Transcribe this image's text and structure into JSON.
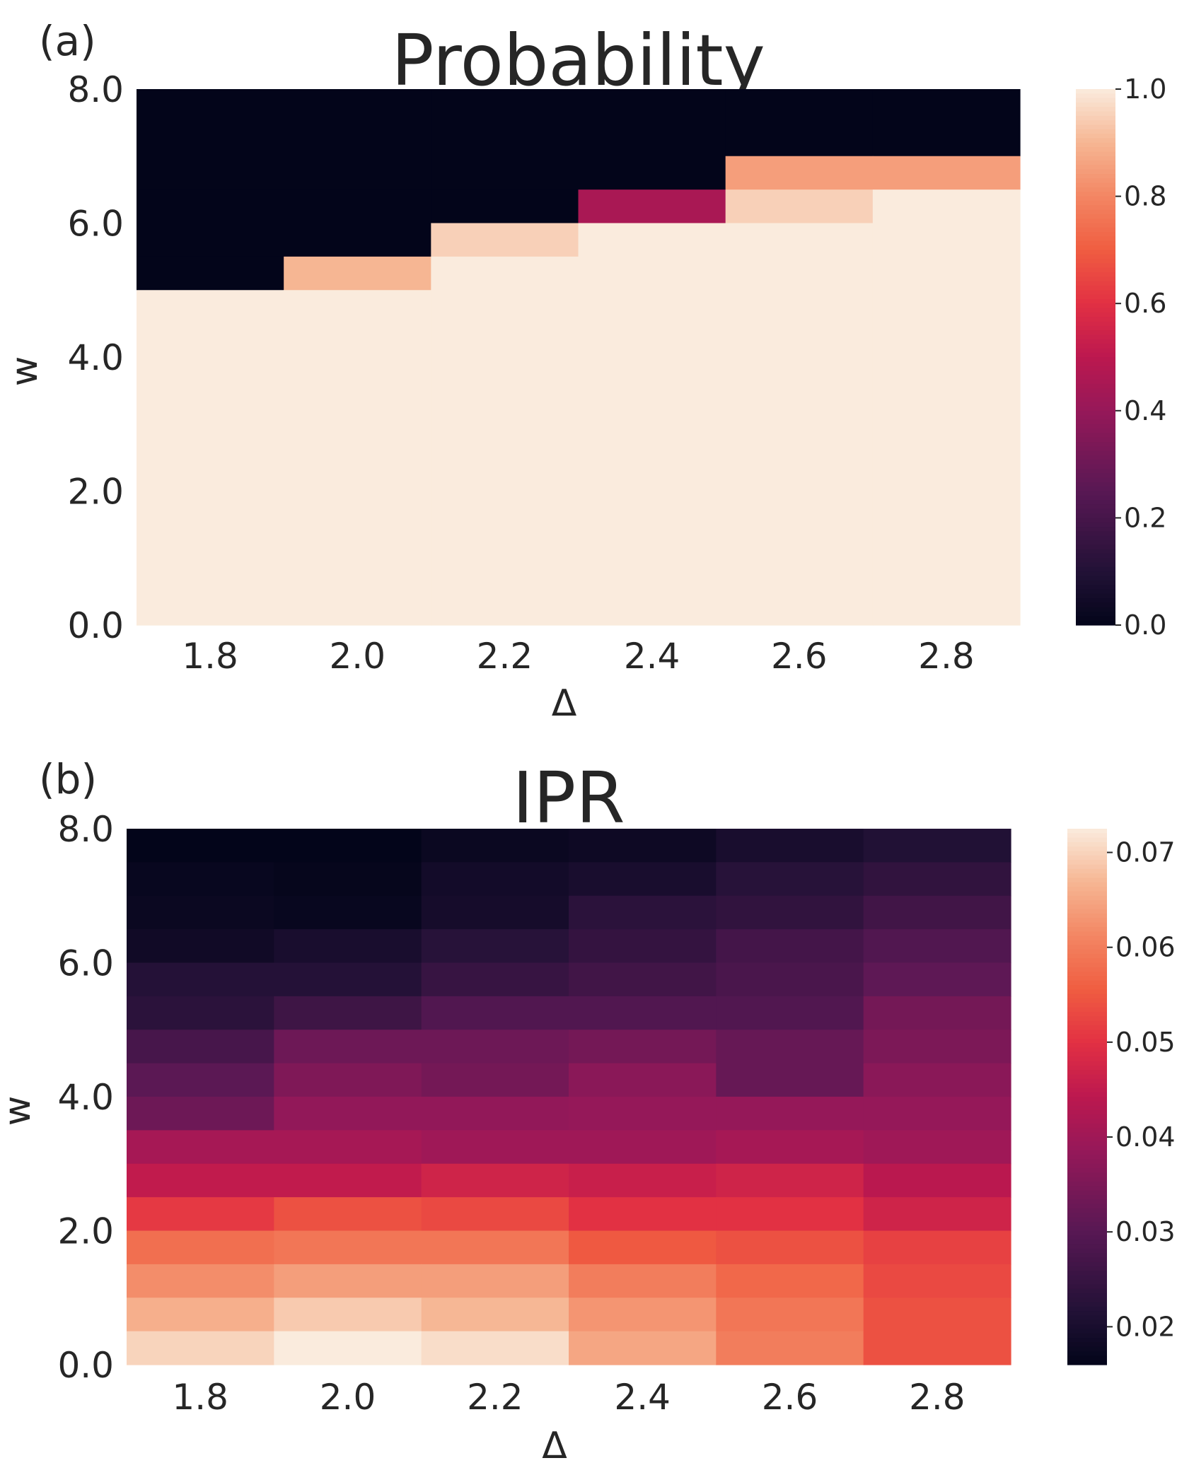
{
  "chart_data": [
    {
      "type": "heatmap",
      "panel_label": "(a)",
      "title": "Probability",
      "xlabel": "Δ",
      "ylabel": "w",
      "x_ticks": [
        "1.8",
        "2.0",
        "2.2",
        "2.4",
        "2.6",
        "2.8"
      ],
      "y_ticks": [
        "8.0",
        "6.0",
        "4.0",
        "2.0",
        "0.0"
      ],
      "y_tick_values": [
        8,
        6,
        4,
        2,
        0
      ],
      "x": [
        1.8,
        2.0,
        2.2,
        2.4,
        2.6,
        2.8
      ],
      "y": [
        8.0,
        7.5,
        7.0,
        6.5,
        6.0,
        5.5,
        5.0,
        4.5,
        4.0,
        3.5,
        3.0,
        2.5,
        2.0,
        1.5,
        1.0,
        0.5,
        0.0
      ],
      "ylim": [
        0,
        8
      ],
      "z": [
        [
          0,
          0,
          0,
          0,
          0,
          0
        ],
        [
          0,
          0,
          0,
          0,
          0.85,
          0.85
        ],
        [
          0,
          0,
          0,
          0.45,
          0.95,
          1
        ],
        [
          0,
          0,
          0.95,
          1,
          1,
          1
        ],
        [
          0,
          0.9,
          1,
          1,
          1,
          1
        ],
        [
          1,
          1,
          1,
          1,
          1,
          1
        ],
        [
          1,
          1,
          1,
          1,
          1,
          1
        ],
        [
          1,
          1,
          1,
          1,
          1,
          1
        ],
        [
          1,
          1,
          1,
          1,
          1,
          1
        ],
        [
          1,
          1,
          1,
          1,
          1,
          1
        ],
        [
          1,
          1,
          1,
          1,
          1,
          1
        ],
        [
          1,
          1,
          1,
          1,
          1,
          1
        ],
        [
          1,
          1,
          1,
          1,
          1,
          1
        ],
        [
          1,
          1,
          1,
          1,
          1,
          1
        ],
        [
          1,
          1,
          1,
          1,
          1,
          1
        ],
        [
          1,
          1,
          1,
          1,
          1,
          1
        ]
      ],
      "z_rows_top_to_bottom_edges": [
        8.0,
        7.0,
        6.5,
        6.0,
        5.5,
        5.0,
        0.0
      ],
      "z_bands": [
        {
          "w_top": 8.0,
          "w_bottom": 7.0,
          "values": [
            0,
            0,
            0,
            0,
            0,
            0
          ]
        },
        {
          "w_top": 7.0,
          "w_bottom": 6.5,
          "values": [
            0,
            0,
            0,
            0,
            0.85,
            0.85
          ]
        },
        {
          "w_top": 6.5,
          "w_bottom": 6.0,
          "values": [
            0,
            0,
            0,
            0.45,
            0.95,
            1
          ]
        },
        {
          "w_top": 6.0,
          "w_bottom": 5.5,
          "values": [
            0,
            0,
            0.95,
            1,
            1,
            1
          ]
        },
        {
          "w_top": 5.5,
          "w_bottom": 5.0,
          "values": [
            0,
            0.9,
            1,
            1,
            1,
            1
          ]
        },
        {
          "w_top": 5.0,
          "w_bottom": 0.0,
          "values": [
            1,
            1,
            1,
            1,
            1,
            1
          ]
        }
      ],
      "colorbar": {
        "min": 0.0,
        "max": 1.0,
        "ticks": [
          "1.0",
          "0.8",
          "0.6",
          "0.4",
          "0.2",
          "0.0"
        ],
        "tick_values": [
          1.0,
          0.8,
          0.6,
          0.4,
          0.2,
          0.0
        ]
      },
      "colormap": "rocket",
      "grid": false
    },
    {
      "type": "heatmap",
      "panel_label": "(b)",
      "title": "IPR",
      "xlabel": "Δ",
      "ylabel": "w",
      "x_ticks": [
        "1.8",
        "2.0",
        "2.2",
        "2.4",
        "2.6",
        "2.8"
      ],
      "y_ticks": [
        "8.0",
        "6.0",
        "4.0",
        "2.0",
        "0.0"
      ],
      "y_tick_values": [
        8,
        6,
        4,
        2,
        0
      ],
      "x": [
        1.8,
        2.0,
        2.2,
        2.4,
        2.6,
        2.8
      ],
      "y": [
        8.0,
        7.5,
        7.0,
        6.5,
        6.0,
        5.5,
        5.0,
        4.5,
        4.0,
        3.5,
        3.0,
        2.5,
        2.0,
        1.5,
        1.0,
        0.5
      ],
      "ylim": [
        0,
        8
      ],
      "z": [
        [
          0.016,
          0.016,
          0.0175,
          0.018,
          0.02,
          0.0215
        ],
        [
          0.017,
          0.0165,
          0.019,
          0.02,
          0.0225,
          0.024
        ],
        [
          0.0175,
          0.017,
          0.0195,
          0.023,
          0.024,
          0.0265
        ],
        [
          0.0185,
          0.02,
          0.0225,
          0.0245,
          0.027,
          0.029
        ],
        [
          0.022,
          0.022,
          0.025,
          0.0265,
          0.028,
          0.031
        ],
        [
          0.023,
          0.026,
          0.029,
          0.029,
          0.029,
          0.034
        ],
        [
          0.0275,
          0.033,
          0.033,
          0.034,
          0.032,
          0.035
        ],
        [
          0.0305,
          0.0355,
          0.034,
          0.037,
          0.032,
          0.037
        ],
        [
          0.033,
          0.038,
          0.038,
          0.0385,
          0.0385,
          0.0385
        ],
        [
          0.041,
          0.041,
          0.04,
          0.04,
          0.041,
          0.04
        ],
        [
          0.045,
          0.045,
          0.047,
          0.046,
          0.047,
          0.044
        ],
        [
          0.051,
          0.054,
          0.053,
          0.05,
          0.05,
          0.047
        ],
        [
          0.058,
          0.059,
          0.059,
          0.055,
          0.054,
          0.052
        ],
        [
          0.062,
          0.064,
          0.064,
          0.06,
          0.057,
          0.053
        ],
        [
          0.066,
          0.069,
          0.067,
          0.063,
          0.059,
          0.054
        ],
        [
          0.07,
          0.073,
          0.071,
          0.065,
          0.06,
          0.054
        ]
      ],
      "colorbar": {
        "min": 0.016,
        "max": 0.0725,
        "ticks": [
          "0.07",
          "0.06",
          "0.05",
          "0.04",
          "0.03",
          "0.02"
        ],
        "tick_values": [
          0.07,
          0.06,
          0.05,
          0.04,
          0.03,
          0.02
        ]
      },
      "colormap": "rocket",
      "grid": false
    }
  ]
}
